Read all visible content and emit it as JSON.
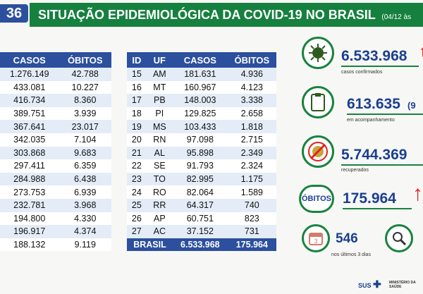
{
  "page_number": "36",
  "header": {
    "title": "SITUAÇÃO EPIDEMIOLÓGICA DA COVID-19 NO BRASIL",
    "date": "(04/12 às"
  },
  "left_table": {
    "headers": [
      "CASOS",
      "ÓBITOS"
    ],
    "rows": [
      [
        "1.276.149",
        "42.788"
      ],
      [
        "433.081",
        "10.227"
      ],
      [
        "416.734",
        "8.360"
      ],
      [
        "389.751",
        "3.939"
      ],
      [
        "367.641",
        "23.017"
      ],
      [
        "342.035",
        "7.104"
      ],
      [
        "303.868",
        "9.683"
      ],
      [
        "297.411",
        "6.359"
      ],
      [
        "284.988",
        "6.438"
      ],
      [
        "273.753",
        "6.939"
      ],
      [
        "232.781",
        "3.968"
      ],
      [
        "194.800",
        "4.330"
      ],
      [
        "196.917",
        "4.374"
      ],
      [
        "188.132",
        "9.119"
      ]
    ]
  },
  "right_table": {
    "headers": [
      "ID",
      "UF",
      "CASOS",
      "ÓBITOS"
    ],
    "rows": [
      [
        "15",
        "AM",
        "181.631",
        "4.936"
      ],
      [
        "16",
        "MT",
        "160.967",
        "4.123"
      ],
      [
        "17",
        "PB",
        "148.003",
        "3.338"
      ],
      [
        "18",
        "PI",
        "129.825",
        "2.658"
      ],
      [
        "19",
        "MS",
        "103.433",
        "1.818"
      ],
      [
        "20",
        "RN",
        "97.098",
        "2.715"
      ],
      [
        "21",
        "AL",
        "95.898",
        "2.349"
      ],
      [
        "22",
        "SE",
        "91.793",
        "2.324"
      ],
      [
        "23",
        "TO",
        "82.995",
        "1.175"
      ],
      [
        "24",
        "RO",
        "82.064",
        "1.589"
      ],
      [
        "25",
        "RR",
        "64.317",
        "740"
      ],
      [
        "26",
        "AP",
        "60.751",
        "823"
      ],
      [
        "27",
        "AC",
        "37.152",
        "731"
      ]
    ],
    "total": [
      "BRASIL",
      "6.533.968",
      "175.964"
    ]
  },
  "stats": {
    "confirmed_value": "6.533.968",
    "confirmed_label": "casos confirmados",
    "monitoring_value": "613.635",
    "monitoring_extra": "(9",
    "monitoring_label": "em acompanhamento",
    "recovered_value": "5.744.369",
    "recovered_label": "recuperados",
    "deaths_label": "ÓBITOS",
    "deaths_value": "175.964",
    "recent_value": "546",
    "recent_label": "nos últimos 3 dias",
    "calendar_text": "3"
  },
  "footer": {
    "sus_label": "SUS",
    "ministry_label": "MINISTÉRIO DA SAÚDE"
  },
  "colors": {
    "primary_blue": "#2c4f9e",
    "brand_green": "#16803f",
    "alert_red": "#e2201b"
  },
  "icons": [
    "virus-icon",
    "clipboard-icon",
    "no-virus-icon",
    "calendar-icon",
    "magnifier-icon"
  ]
}
